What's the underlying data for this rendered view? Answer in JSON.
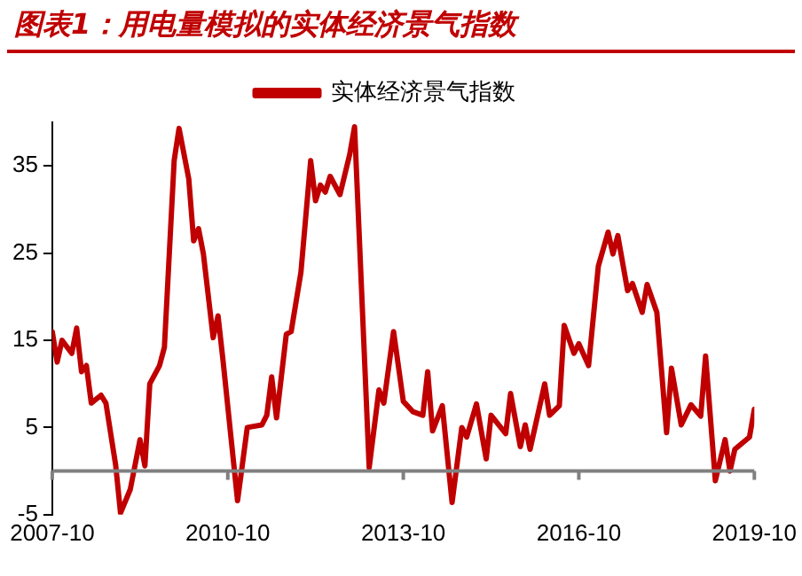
{
  "chart_data": {
    "type": "line",
    "title": "图表1：用电量模拟的实体经济景气指数",
    "legend": "top",
    "grid": false,
    "marker": "none",
    "line_style": "solid",
    "xlim": [
      "2007-10",
      "2019-10"
    ],
    "xticks": [
      "2007-10",
      "2010-10",
      "2013-10",
      "2016-10",
      "2019-10"
    ],
    "ylim": [
      -5,
      40
    ],
    "yticks": [
      -5,
      5,
      15,
      25,
      35
    ],
    "series": [
      {
        "name": "实体经济景气指数",
        "color": "#c00000",
        "x": [
          "2007-10",
          "2007-11",
          "2007-12",
          "2008-02",
          "2008-03",
          "2008-04",
          "2008-05",
          "2008-06",
          "2008-08",
          "2008-09",
          "2008-11",
          "2008-12",
          "2009-02",
          "2009-04",
          "2009-05",
          "2009-06",
          "2009-08",
          "2009-09",
          "2009-11",
          "2009-12",
          "2010-02",
          "2010-03",
          "2010-04",
          "2010-05",
          "2010-07",
          "2010-08",
          "2010-09",
          "2010-12",
          "2011-02",
          "2011-05",
          "2011-06",
          "2011-07",
          "2011-08",
          "2011-10",
          "2011-11",
          "2012-01",
          "2012-03",
          "2012-04",
          "2012-05",
          "2012-06",
          "2012-07",
          "2012-09",
          "2012-11",
          "2012-12",
          "2013-03",
          "2013-05",
          "2013-06",
          "2013-08",
          "2013-10",
          "2013-12",
          "2014-02",
          "2014-03",
          "2014-04",
          "2014-06",
          "2014-08",
          "2014-10",
          "2014-11",
          "2015-01",
          "2015-03",
          "2015-04",
          "2015-07",
          "2015-08",
          "2015-10",
          "2015-11",
          "2015-12",
          "2016-03",
          "2016-04",
          "2016-06",
          "2016-07",
          "2016-09",
          "2016-10",
          "2016-12",
          "2017-02",
          "2017-04",
          "2017-05",
          "2017-06",
          "2017-08",
          "2017-09",
          "2017-11",
          "2017-12",
          "2018-02",
          "2018-04",
          "2018-05",
          "2018-07",
          "2018-09",
          "2018-11",
          "2018-12",
          "2019-02",
          "2019-04",
          "2019-05",
          "2019-06",
          "2019-09",
          "2019-10"
        ],
        "values": [
          16,
          12.5,
          15,
          13.5,
          16.4,
          11.4,
          12.1,
          7.8,
          8.7,
          7.8,
          0.7,
          -4.8,
          -2.1,
          3.6,
          0.6,
          10,
          12.1,
          14.2,
          35.6,
          39.3,
          33.5,
          26.4,
          27.8,
          24.9,
          15.3,
          17.8,
          12.8,
          -3.4,
          5,
          5.3,
          6.4,
          10.8,
          6.1,
          15.7,
          16,
          22.8,
          35.6,
          31,
          32.8,
          32,
          33.8,
          31.7,
          36.3,
          39.5,
          0.4,
          9.3,
          7.8,
          16,
          8,
          6.8,
          6.4,
          11.4,
          4.6,
          7.5,
          -3.6,
          5,
          3.9,
          7.7,
          1.4,
          6.4,
          4.3,
          8.9,
          2.8,
          5.3,
          2.5,
          10,
          6.4,
          7.5,
          16.7,
          13.5,
          14.6,
          12.1,
          23.5,
          27.4,
          24.9,
          27,
          20.7,
          21.5,
          18.2,
          21.4,
          18.2,
          4.4,
          11.8,
          5.3,
          7.6,
          6.3,
          13.2,
          -1.1,
          3.6,
          0,
          2.5,
          3.9,
          7.1
        ]
      }
    ]
  }
}
